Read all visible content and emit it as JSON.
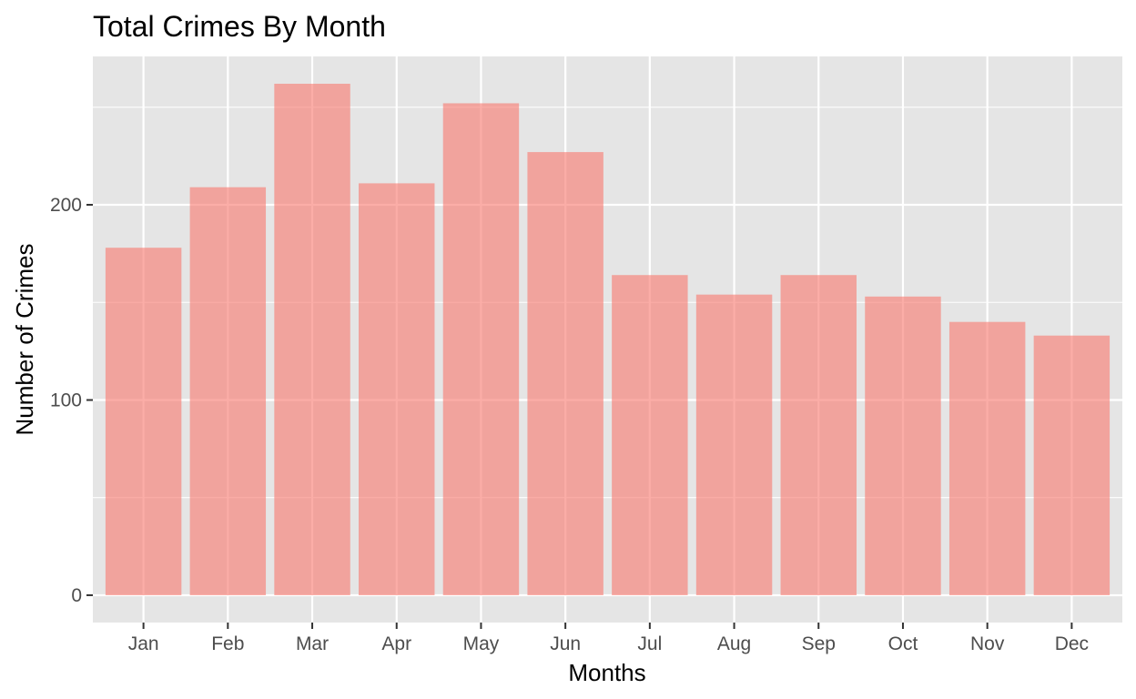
{
  "chart_data": {
    "type": "bar",
    "title": "Total Crimes By Month",
    "xlabel": "Months",
    "ylabel": "Number of Crimes",
    "categories": [
      "Jan",
      "Feb",
      "Mar",
      "Apr",
      "May",
      "Jun",
      "Jul",
      "Aug",
      "Sep",
      "Oct",
      "Nov",
      "Dec"
    ],
    "values": [
      178,
      209,
      262,
      211,
      252,
      227,
      164,
      154,
      164,
      153,
      140,
      133
    ],
    "ylim": [
      -14,
      276
    ],
    "yticks": [
      0,
      100,
      200
    ],
    "yticks_labels": [
      "0",
      "100",
      "200"
    ],
    "grid": true,
    "colors": {
      "bar": "#F8766D",
      "panel": "#E5E5E5",
      "grid": "#FFFFFF"
    }
  }
}
